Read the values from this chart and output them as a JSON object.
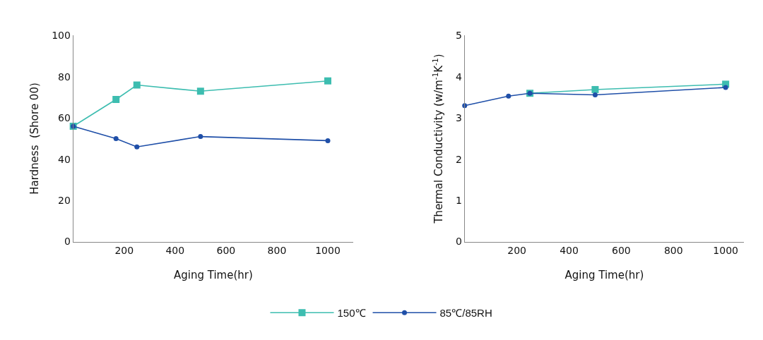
{
  "chart_data": [
    {
      "type": "line",
      "xlabel": "Aging Time(hr)",
      "ylabel": "Hardness  (Shore 00)",
      "x": [
        0,
        168,
        250,
        500,
        1000
      ],
      "xlim": [
        0,
        1100
      ],
      "xticks": [
        200,
        400,
        600,
        800,
        1000
      ],
      "ylim": [
        0,
        100
      ],
      "yticks": [
        0,
        20,
        40,
        60,
        80,
        100
      ],
      "legend": "bottom",
      "series": [
        {
          "name": "150℃",
          "color": "#3dbdb0",
          "marker": "square",
          "values": [
            56,
            69,
            76,
            73,
            78
          ]
        },
        {
          "name": "85℃/85RH",
          "color": "#1f4fa8",
          "marker": "circle",
          "values": [
            56,
            50,
            46,
            51,
            49
          ]
        }
      ]
    },
    {
      "type": "line",
      "xlabel": "Aging Time(hr)",
      "ylabel": "Thermal Conductivity (w/m$^{-1}$K$^{-1}$)",
      "x": [
        0,
        168,
        250,
        500,
        1000
      ],
      "xlim": [
        0,
        1070
      ],
      "xticks": [
        200,
        400,
        600,
        800,
        1000
      ],
      "ylim": [
        0,
        5
      ],
      "yticks": [
        0,
        1,
        2,
        3,
        4,
        5
      ],
      "series": [
        {
          "color": "#3dbdb0",
          "marker": "square",
          "values": [
            null,
            null,
            3.6,
            3.69,
            3.82
          ]
        },
        {
          "color": "#1f4fa8",
          "marker": "circle",
          "values": [
            3.3,
            3.53,
            3.6,
            3.56,
            3.74
          ]
        }
      ]
    }
  ]
}
